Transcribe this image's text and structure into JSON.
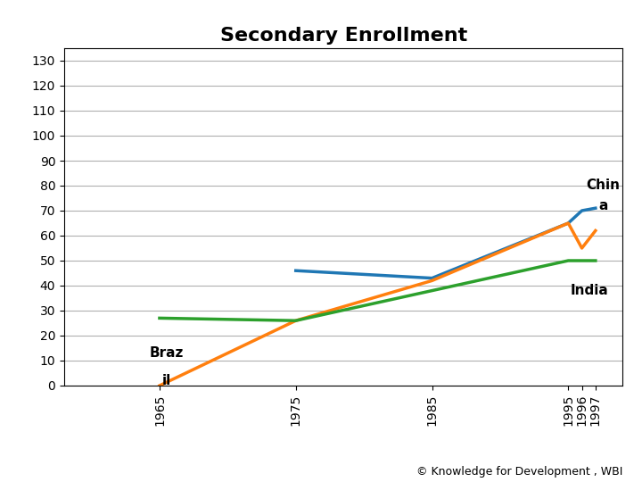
{
  "chart_data": {
    "type": "line",
    "title": "Secondary Enrollment",
    "x": [
      1965,
      1975,
      1985,
      1995,
      1996,
      1997
    ],
    "xlim": [
      1958,
      1999
    ],
    "xticks": [
      1965,
      1975,
      1985,
      1995,
      1996,
      1997
    ],
    "ylim": [
      0,
      135
    ],
    "yticks": [
      0,
      10,
      20,
      30,
      40,
      50,
      60,
      70,
      80,
      90,
      100,
      110,
      120,
      130
    ],
    "grid": true,
    "series": [
      {
        "name": "China",
        "values": [
          null,
          46,
          43,
          65,
          70,
          71
        ]
      },
      {
        "name": "Brazil",
        "values": [
          0,
          26,
          42,
          65,
          55,
          62
        ]
      },
      {
        "name": "India",
        "values": [
          27,
          26,
          38,
          50,
          50,
          50
        ]
      }
    ],
    "annotations": [
      {
        "text": "Chin",
        "x": 1997,
        "y": 80
      },
      {
        "text": "a",
        "x": 1997,
        "y": 72
      },
      {
        "text": "India",
        "x": 1996,
        "y": 38
      },
      {
        "text": "Braz",
        "x": 1965,
        "y": 13
      },
      {
        "text": "il",
        "x": 1965,
        "y": 2
      }
    ],
    "footer": "© Knowledge for Development , WBI"
  }
}
